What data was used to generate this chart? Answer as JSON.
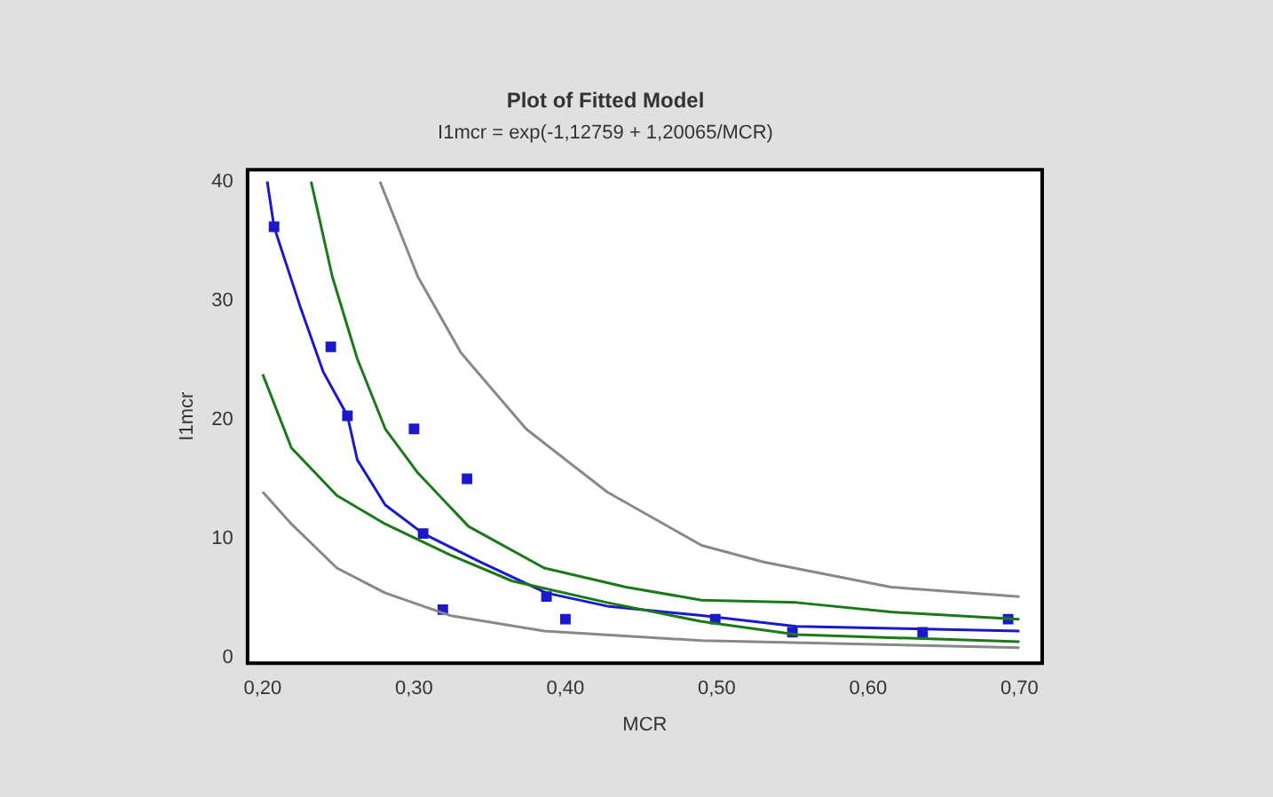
{
  "chart_data": {
    "type": "scatter",
    "title": "Plot of Fitted Model",
    "subtitle": "I1mcr = exp(-1,12759 + 1,20065/MCR)",
    "xlabel": "MCR",
    "ylabel": "I1mcr",
    "xlim": [
      0.19,
      0.715
    ],
    "ylim": [
      -0.5,
      41
    ],
    "xticks": [
      {
        "value": 0.2,
        "label": "0,20"
      },
      {
        "value": 0.3,
        "label": "0,30"
      },
      {
        "value": 0.4,
        "label": "0,40"
      },
      {
        "value": 0.5,
        "label": "0,50"
      },
      {
        "value": 0.6,
        "label": "0,60"
      },
      {
        "value": 0.7,
        "label": "0,70"
      }
    ],
    "yticks": [
      0,
      10,
      20,
      30,
      40
    ],
    "grid": false,
    "legend": false,
    "series": [
      {
        "type": "line",
        "color": "#888888",
        "marker": "none",
        "x": [
          0.2775,
          0.3025,
          0.331,
          0.374,
          0.4275,
          0.49,
          0.531,
          0.615,
          0.7
        ],
        "values": [
          40,
          32,
          25.6,
          19.2,
          13.9,
          9.4,
          8.0,
          5.9,
          5.1
        ]
      },
      {
        "type": "line",
        "color": "#888888",
        "marker": "none",
        "x": [
          0.2,
          0.219,
          0.249,
          0.281,
          0.324,
          0.386,
          0.49,
          0.7
        ],
        "values": [
          13.9,
          11.2,
          7.5,
          5.4,
          3.5,
          2.2,
          1.4,
          0.8
        ]
      },
      {
        "type": "line",
        "color": "#1a7a1a",
        "marker": "none",
        "x": [
          0.232,
          0.246,
          0.2625,
          0.281,
          0.3025,
          0.336,
          0.386,
          0.44,
          0.49,
          0.5525,
          0.615,
          0.7
        ],
        "values": [
          40,
          32,
          25.1,
          19.2,
          15.5,
          11,
          7.5,
          5.9,
          4.8,
          4.6,
          3.8,
          3.2
        ]
      },
      {
        "type": "line",
        "color": "#1a7a1a",
        "marker": "none",
        "x": [
          0.2,
          0.219,
          0.249,
          0.281,
          0.324,
          0.365,
          0.4275,
          0.49,
          0.5525,
          0.7
        ],
        "values": [
          23.8,
          17.6,
          13.6,
          11.2,
          8.6,
          6.4,
          4.6,
          3.0,
          1.9,
          1.3
        ]
      },
      {
        "type": "line",
        "color": "#1a1acc",
        "marker": "none",
        "x": [
          0.203,
          0.2075,
          0.225,
          0.24,
          0.256,
          0.2625,
          0.281,
          0.306,
          0.344,
          0.3875,
          0.4275,
          0.49,
          0.5525,
          0.624,
          0.7
        ],
        "values": [
          40,
          36.2,
          29.4,
          24,
          20.3,
          16.6,
          12.8,
          10.4,
          8.0,
          5.4,
          4.3,
          3.5,
          2.6,
          2.4,
          2.2
        ]
      },
      {
        "type": "scatter",
        "color": "#1a1acc",
        "marker": "square",
        "x": [
          0.2075,
          0.245,
          0.256,
          0.3,
          0.335,
          0.306,
          0.319,
          0.3875,
          0.4,
          0.499,
          0.55,
          0.636,
          0.6925
        ],
        "values": [
          36.2,
          26.1,
          20.3,
          19.2,
          15.0,
          10.4,
          4.0,
          5.1,
          3.2,
          3.2,
          2.1,
          2.1,
          3.2
        ]
      }
    ]
  }
}
